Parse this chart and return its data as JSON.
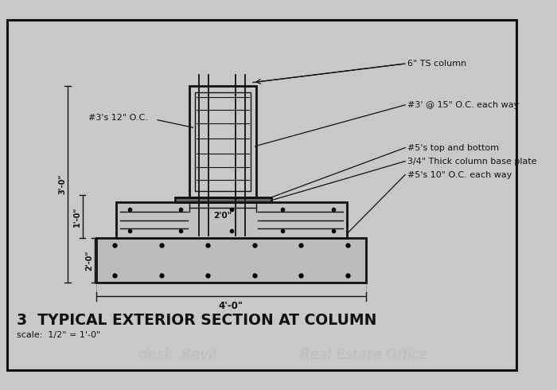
{
  "title": "3  TYPICAL EXTERIOR SECTION AT COLUMN",
  "scale_text": "scale:  1/2\" = 1'-0\"",
  "bg_color": "#c8c8c8",
  "line_color": "#111111",
  "ann_ts_col": "6\" TS column",
  "ann_3_oc": "#3' @ 15\" O.C. each way",
  "ann_5_tb": "#5's top and bottom",
  "ann_bp": "3/4\" Thick column base plate",
  "ann_5_oc": "#5's 10\" O.C. each way",
  "ann_3_12": "#3's 12\" O.C.",
  "dim_40": "4'-0\"",
  "dim_20": "2'0\"",
  "dim_30v": "3'-0\"",
  "dim_10v": "1'-0\"",
  "dim_20v": "2'-0\"",
  "watermark1": "desk  Revit",
  "watermark2": "Real Estate Office"
}
